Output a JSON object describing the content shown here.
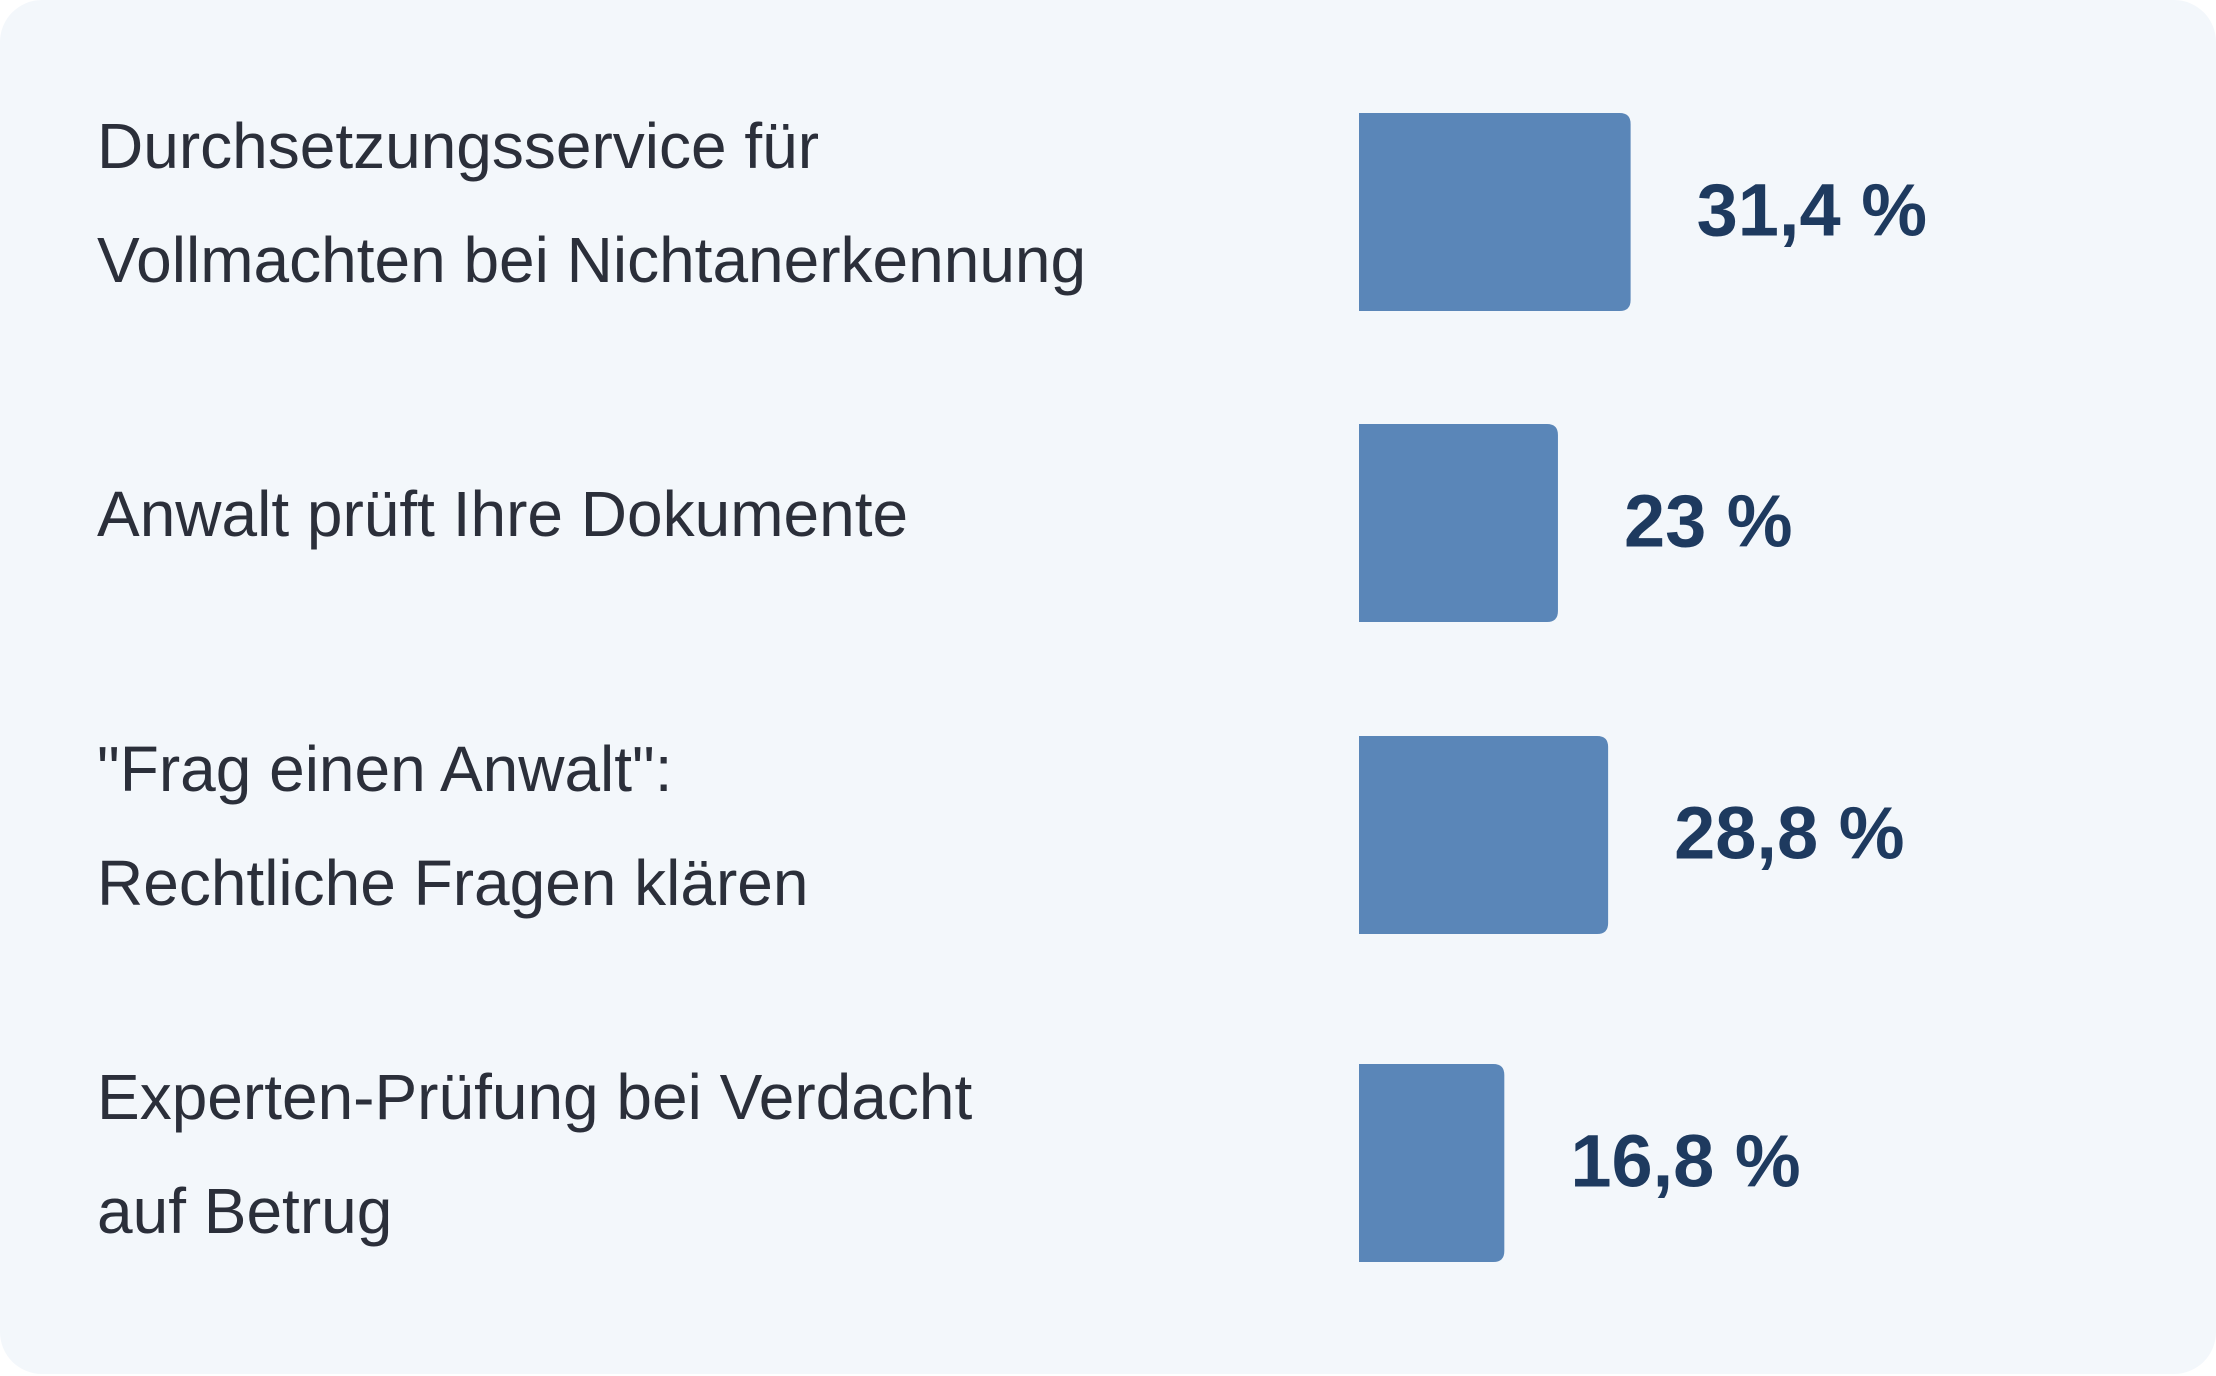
{
  "chart_data": {
    "type": "bar",
    "orientation": "horizontal",
    "categories": [
      [
        "Durchsetzungsservice für",
        "Vollmachten bei Nichtanerkennung"
      ],
      [
        "Anwalt prüft Ihre Dokumente"
      ],
      [
        "\"Frag einen Anwalt\":",
        "Rechtliche Fragen klären"
      ],
      [
        "Experten-Prüfung bei Verdacht",
        "auf Betrug"
      ]
    ],
    "values": [
      31.4,
      23,
      28.8,
      16.8
    ],
    "value_labels": [
      "31,4 %",
      "23 %",
      "28,8 %",
      "16,8 %"
    ],
    "color": "#5a86b8"
  }
}
